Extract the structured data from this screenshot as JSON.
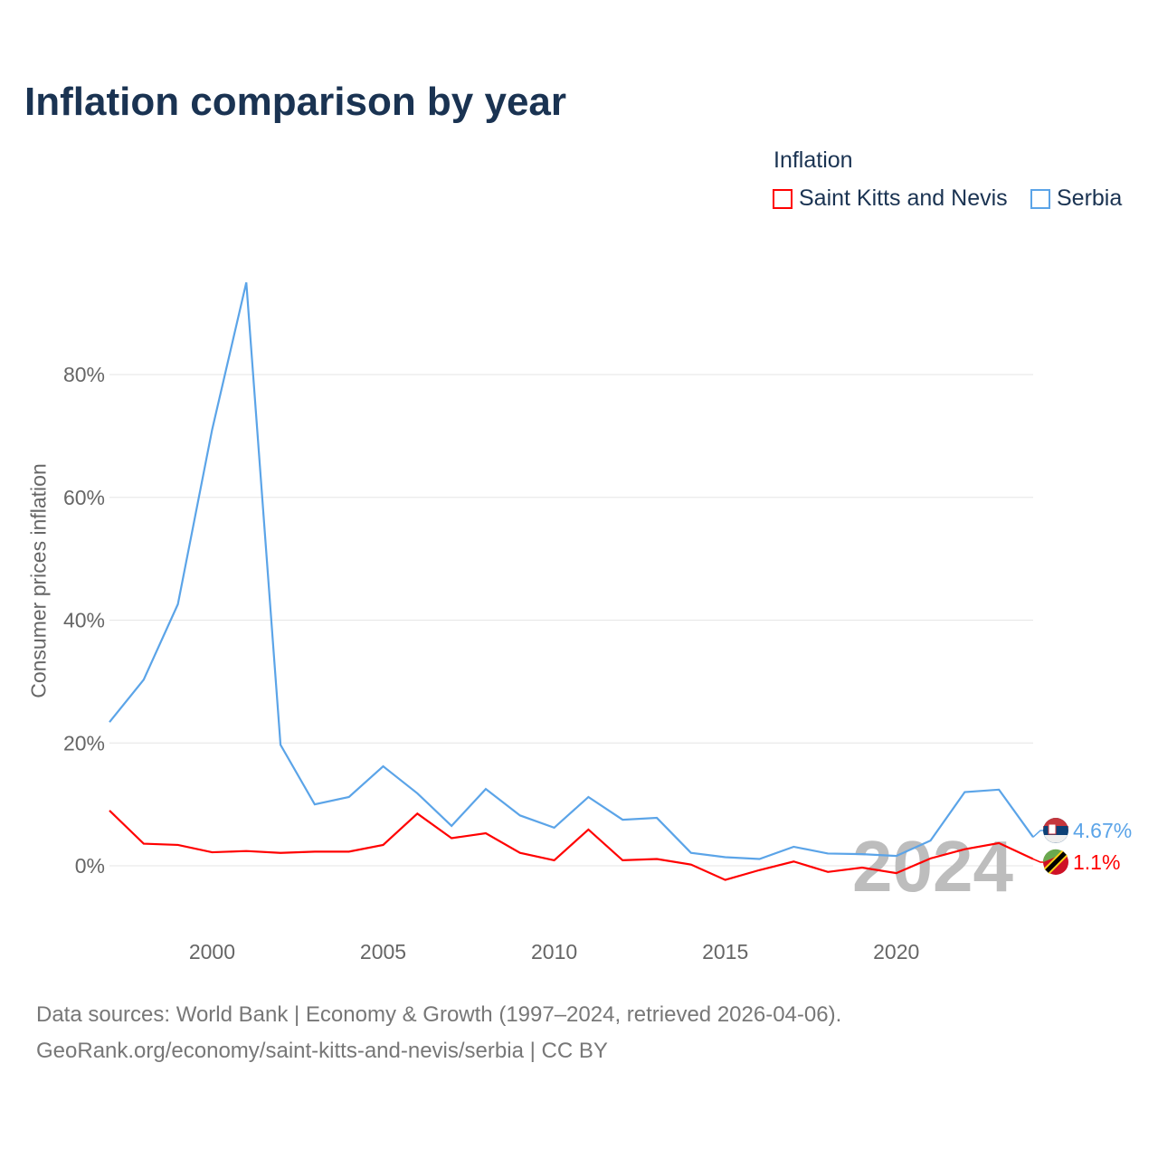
{
  "chart_data": {
    "type": "line",
    "title": "Inflation comparison by year",
    "legend_title": "Inflation",
    "legend_placement": "top-right",
    "ylabel": "Consumer prices inflation",
    "xlabel": "",
    "xlim": [
      1997,
      2024
    ],
    "ylim": [
      -10,
      100
    ],
    "x_ticks": [
      2000,
      2005,
      2010,
      2015,
      2020
    ],
    "y_ticks": [
      0,
      20,
      40,
      60,
      80
    ],
    "y_tick_labels": [
      "0%",
      "20%",
      "40%",
      "60%",
      "80%"
    ],
    "x_tick_labels": [
      "2000",
      "2005",
      "2010",
      "2015",
      "2020"
    ],
    "grid": true,
    "year_watermark": "2024",
    "x": [
      1997,
      1998,
      1999,
      2000,
      2001,
      2002,
      2003,
      2004,
      2005,
      2006,
      2007,
      2008,
      2009,
      2010,
      2011,
      2012,
      2013,
      2014,
      2015,
      2016,
      2017,
      2018,
      2019,
      2020,
      2021,
      2022,
      2023,
      2024
    ],
    "series": [
      {
        "name": "Saint Kitts and Nevis",
        "color": "#ff0000",
        "end_label": "1.1%",
        "values": [
          9.0,
          3.6,
          3.4,
          2.2,
          2.4,
          2.1,
          2.3,
          2.3,
          3.4,
          8.5,
          4.5,
          5.3,
          2.1,
          0.9,
          5.9,
          0.9,
          1.1,
          0.2,
          -2.3,
          -0.7,
          0.7,
          -1.0,
          -0.3,
          -1.2,
          1.2,
          2.7,
          3.7,
          1.1
        ]
      },
      {
        "name": "Serbia",
        "color": "#5ba4e8",
        "end_label": "4.67%",
        "values": [
          23.4,
          30.3,
          42.6,
          71.0,
          95.0,
          19.7,
          10.0,
          11.2,
          16.2,
          11.8,
          6.5,
          12.5,
          8.2,
          6.2,
          11.2,
          7.5,
          7.8,
          2.1,
          1.4,
          1.1,
          3.1,
          2.0,
          1.9,
          1.6,
          4.1,
          12.0,
          12.4,
          4.67
        ]
      }
    ]
  },
  "footer": {
    "line1": "Data sources: World Bank | Economy & Growth (1997–2024, retrieved 2026-04-06).",
    "line2": "GeoRank.org/economy/saint-kitts-and-nevis/serbia | CC BY"
  }
}
